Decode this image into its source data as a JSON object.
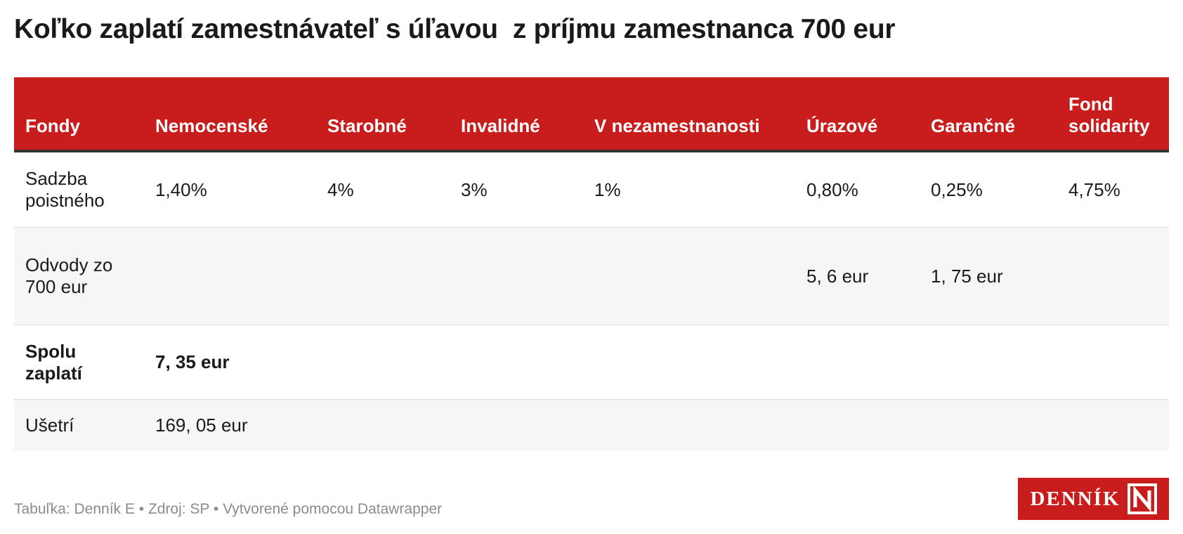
{
  "title": "Koľko zaplatí zamestnávateľ s úľavou  z príjmu zamestnanca 700 eur",
  "footer": "Tabuľka: Denník E • Zdroj: SP • Vytvorené pomocou Datawrapper",
  "logo": {
    "text": "DENNÍK",
    "mark": "N"
  },
  "colors": {
    "header": "#c91c1c",
    "logo": "#c91c1c",
    "stripe": "#f6f6f6"
  },
  "chart_data": {
    "type": "table",
    "columns": [
      "Fondy",
      "Nemocenské",
      "Starobné",
      "Invalidné",
      "V nezamestnanosti",
      "Úrazové",
      "Garančné",
      "Fond solidarity"
    ],
    "rows": [
      [
        "Sadzba poistného",
        "1,40%",
        "4%",
        "3%",
        "1%",
        "0,80%",
        "0,25%",
        "4,75%"
      ],
      [
        "Odvody zo 700 eur",
        "",
        "",
        "",
        "",
        "5, 6 eur",
        "1, 75 eur",
        ""
      ],
      [
        "Spolu zaplatí",
        "7, 35 eur",
        "",
        "",
        "",
        "",
        "",
        ""
      ],
      [
        "Ušetrí",
        "169, 05 eur",
        "",
        "",
        "",
        "",
        "",
        ""
      ]
    ]
  }
}
